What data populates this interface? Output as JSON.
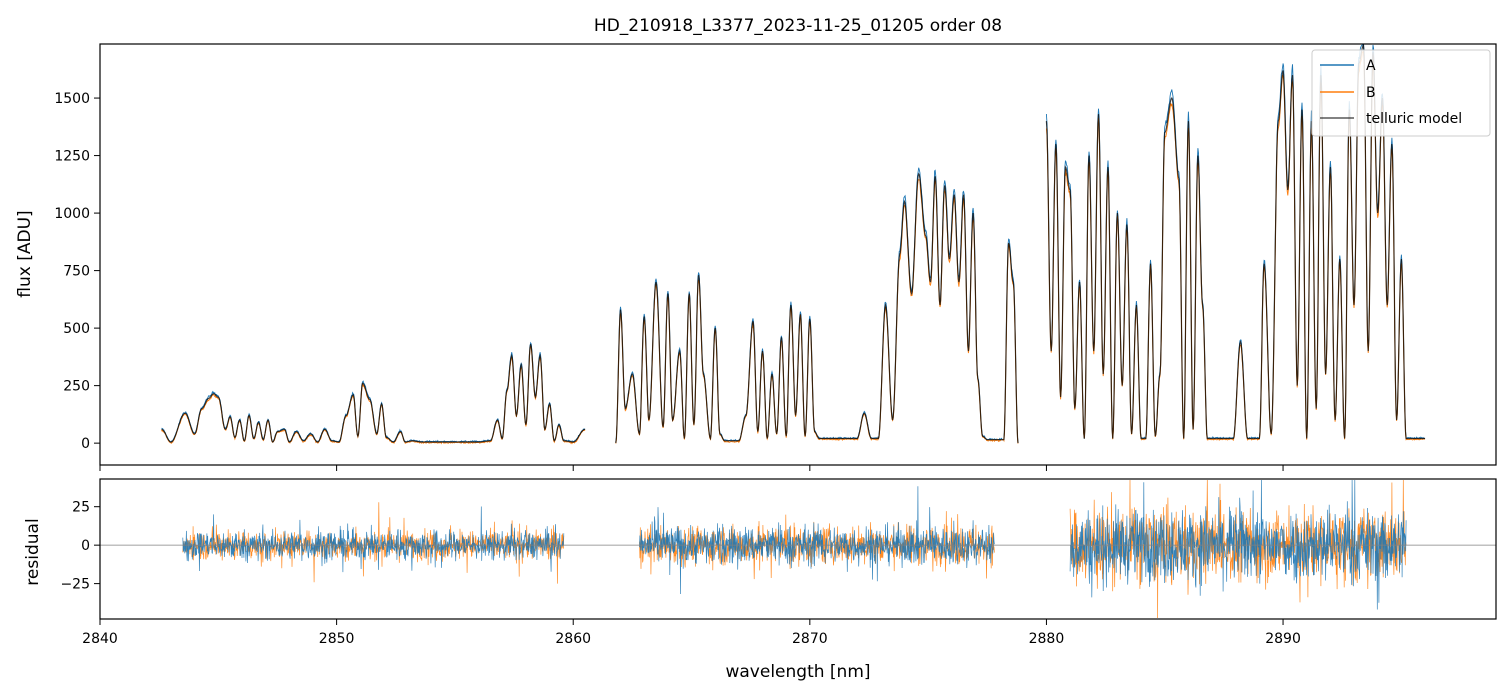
{
  "figure": {
    "title": "HD_210918_L3377_2023-11-25_01205  order 08"
  },
  "colors": {
    "A": "#1f77b4",
    "B": "#ff7f0e",
    "model": "#000000",
    "zero_line": "#808080",
    "axes": "#000000"
  },
  "chart_data": [
    {
      "panel": "flux",
      "type": "line",
      "title": "HD_210918_L3377_2023-11-25_01205  order 08",
      "xlabel": "",
      "ylabel": "flux [ADU]",
      "xlim": [
        2840,
        2899
      ],
      "ylim": [
        -95,
        1735
      ],
      "yticks": [
        0,
        250,
        500,
        750,
        1000,
        1250,
        1500
      ],
      "ytick_labels": [
        "0",
        "250",
        "500",
        "750",
        "1000",
        "1250",
        "1500"
      ],
      "xticks": [
        2840,
        2850,
        2860,
        2870,
        2880,
        2890
      ],
      "grid": false,
      "legend_placement": "top-right",
      "legend": [
        "A",
        "B",
        "telluric model"
      ],
      "segments": [
        {
          "x": [
            2842.6,
            2843.0,
            2843.6,
            2844.0,
            2844.3,
            2844.6,
            2844.8,
            2845.0,
            2845.3,
            2845.5,
            2845.7,
            2845.9,
            2846.1,
            2846.3,
            2846.5,
            2846.7,
            2846.9,
            2847.1,
            2847.3,
            2847.5,
            2847.8,
            2848.0,
            2848.3,
            2848.6,
            2848.9,
            2849.2,
            2849.5,
            2849.8,
            2850.1,
            2850.4,
            2850.7,
            2850.9,
            2851.1,
            2851.4,
            2851.7,
            2851.9,
            2852.1,
            2852.4,
            2852.7,
            2852.9,
            2853.2,
            2853.6,
            2854.0,
            2854.5,
            2855.0,
            2855.5,
            2856.0,
            2856.5,
            2856.8,
            2857.0,
            2857.2,
            2857.4,
            2857.6,
            2857.8,
            2858.0,
            2858.2,
            2858.4,
            2858.6,
            2858.8,
            2859.0,
            2859.2,
            2859.4,
            2859.6,
            2860.0,
            2860.5
          ],
          "y": [
            60,
            5,
            130,
            40,
            150,
            195,
            215,
            200,
            60,
            115,
            25,
            100,
            10,
            120,
            20,
            90,
            15,
            100,
            5,
            50,
            60,
            5,
            50,
            10,
            40,
            5,
            60,
            10,
            5,
            120,
            210,
            30,
            260,
            190,
            40,
            170,
            25,
            5,
            50,
            5,
            10,
            5,
            5,
            5,
            5,
            5,
            5,
            10,
            100,
            20,
            230,
            380,
            120,
            340,
            80,
            430,
            200,
            380,
            60,
            170,
            10,
            80,
            10,
            5,
            60
          ]
        },
        {
          "x": [
            2861.8,
            2862.0,
            2862.2,
            2862.5,
            2862.8,
            2863.0,
            2863.2,
            2863.5,
            2863.8,
            2864.0,
            2864.2,
            2864.5,
            2864.7,
            2864.9,
            2865.1,
            2865.3,
            2865.5,
            2865.8,
            2866.0,
            2866.2,
            2866.4,
            2866.6,
            2866.8,
            2867.0,
            2867.3,
            2867.6,
            2867.8,
            2868.0,
            2868.2,
            2868.4,
            2868.6,
            2868.8,
            2869.0,
            2869.2,
            2869.4,
            2869.6,
            2869.8,
            2870.0,
            2870.2,
            2870.4,
            2870.6,
            2870.8,
            2871.0,
            2871.2,
            2871.4,
            2871.6,
            2871.8,
            2872.0,
            2872.3,
            2872.6,
            2872.9,
            2873.2,
            2873.5,
            2873.8,
            2874.0,
            2874.3,
            2874.6,
            2874.9,
            2875.1,
            2875.3,
            2875.5,
            2875.7,
            2875.9,
            2876.1,
            2876.3,
            2876.5,
            2876.7,
            2876.9,
            2877.1,
            2877.3,
            2877.5,
            2877.7,
            2878.0,
            2878.2,
            2878.4,
            2878.6,
            2878.8
          ],
          "y": [
            0,
            580,
            150,
            300,
            40,
            550,
            100,
            700,
            70,
            650,
            100,
            400,
            20,
            650,
            80,
            730,
            300,
            20,
            500,
            40,
            10,
            10,
            10,
            10,
            120,
            530,
            50,
            400,
            20,
            300,
            40,
            460,
            30,
            600,
            120,
            560,
            30,
            540,
            50,
            20,
            20,
            20,
            20,
            20,
            20,
            20,
            20,
            20,
            130,
            20,
            20,
            600,
            100,
            820,
            1050,
            650,
            1170,
            900,
            700,
            1160,
            600,
            1120,
            800,
            1080,
            700,
            1080,
            400,
            1000,
            280,
            30,
            15,
            15,
            15,
            15,
            870,
            700,
            0
          ]
        },
        {
          "x": [
            2880.0,
            2880.2,
            2880.4,
            2880.6,
            2880.8,
            2881.0,
            2881.2,
            2881.4,
            2881.6,
            2881.8,
            2882.0,
            2882.2,
            2882.4,
            2882.6,
            2882.8,
            2883.0,
            2883.2,
            2883.4,
            2883.6,
            2883.8,
            2884.0,
            2884.2,
            2884.4,
            2884.6,
            2884.8,
            2885.0,
            2885.3,
            2885.6,
            2885.8,
            2886.0,
            2886.2,
            2886.4,
            2886.6,
            2886.8,
            2887.0,
            2887.2,
            2887.4,
            2887.6,
            2887.9,
            2888.2,
            2888.5,
            2888.8,
            2889.0,
            2889.2,
            2889.5,
            2889.8,
            2890.0,
            2890.2,
            2890.4,
            2890.6,
            2890.8,
            2891.0,
            2891.2,
            2891.4,
            2891.6,
            2891.8,
            2892.0,
            2892.2,
            2892.4,
            2892.6,
            2892.8,
            2893.0,
            2893.2,
            2893.4,
            2893.6,
            2893.8,
            2894.0,
            2894.2,
            2894.4,
            2894.6,
            2894.8,
            2895.0,
            2895.2,
            2895.4,
            2895.6,
            2895.8,
            2896.0
          ],
          "y": [
            1400,
            400,
            1300,
            200,
            1200,
            1100,
            150,
            700,
            20,
            1250,
            400,
            1430,
            300,
            1200,
            20,
            1000,
            250,
            950,
            40,
            600,
            20,
            20,
            780,
            30,
            300,
            1350,
            1500,
            1150,
            20,
            1400,
            60,
            1250,
            600,
            20,
            20,
            20,
            20,
            20,
            20,
            440,
            20,
            20,
            20,
            780,
            40,
            1400,
            1620,
            1100,
            1600,
            250,
            1450,
            20,
            1400,
            150,
            1600,
            300,
            1200,
            100,
            800,
            20,
            1450,
            600,
            1650,
            1730,
            400,
            1700,
            1000,
            1500,
            600,
            1300,
            100,
            800,
            20,
            20,
            20,
            20,
            20
          ]
        }
      ]
    },
    {
      "panel": "residual",
      "type": "line",
      "xlabel": "wavelength [nm]",
      "ylabel": "residual",
      "xlim": [
        2840,
        2899
      ],
      "ylim": [
        -48,
        43
      ],
      "yticks": [
        -25,
        0,
        25
      ],
      "ytick_labels": [
        "−25",
        "0",
        "25"
      ],
      "xticks": [
        2840,
        2850,
        2860,
        2870,
        2880,
        2890
      ],
      "xtick_labels": [
        "2840",
        "2850",
        "2860",
        "2870",
        "2880",
        "2890"
      ],
      "grid": false,
      "zero_line": 0,
      "segments": [
        {
          "x_range": [
            2843.5,
            2859.6
          ],
          "amplitude": 12
        },
        {
          "x_range": [
            2862.8,
            2877.8
          ],
          "amplitude": 16
        },
        {
          "x_range": [
            2881.0,
            2895.2
          ],
          "amplitude": 30
        }
      ]
    }
  ]
}
